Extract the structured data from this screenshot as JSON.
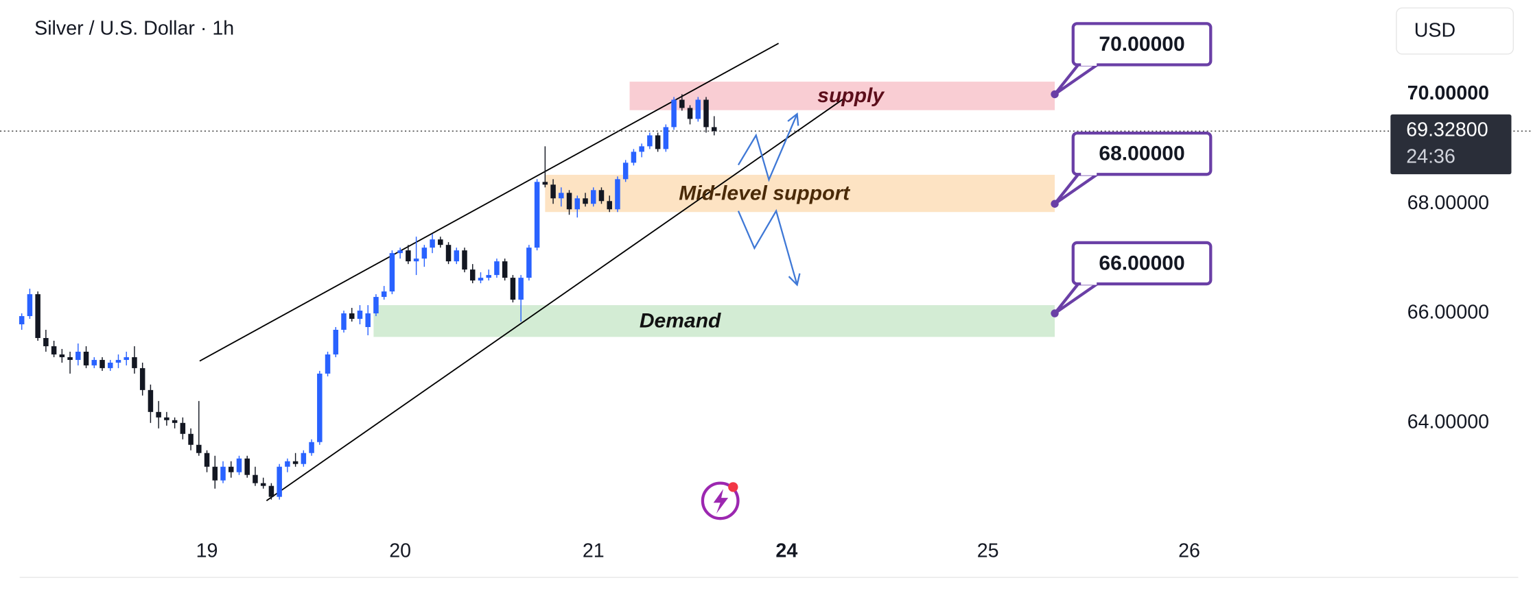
{
  "chart_data": {
    "type": "candlestick",
    "title": "Silver / U.S. Dollar · 1h",
    "currency_button": "USD",
    "up_color": "#2962ff",
    "down_color": "#131722",
    "x": [
      0,
      1,
      2,
      3,
      4,
      5,
      6,
      7,
      8,
      9,
      10,
      11,
      12,
      13,
      14,
      15,
      16,
      17,
      18,
      19,
      20,
      21,
      22,
      23,
      24,
      25,
      26,
      27,
      28,
      29,
      30,
      31,
      32,
      33,
      34,
      35,
      36,
      37,
      38,
      39,
      40,
      41,
      42,
      43,
      44,
      45,
      46,
      47,
      48,
      49,
      50,
      51,
      52,
      53,
      54,
      55,
      56,
      57,
      58,
      59,
      60,
      61,
      62,
      63,
      64,
      65,
      66,
      67,
      68,
      69,
      70,
      71,
      72,
      73,
      74,
      75,
      76,
      77,
      78,
      79,
      80,
      81,
      82,
      83,
      84,
      85,
      86
    ],
    "open": [
      65.8,
      65.95,
      66.35,
      65.55,
      65.4,
      65.25,
      65.2,
      65.15,
      65.3,
      65.05,
      65.15,
      65.0,
      65.1,
      65.15,
      65.2,
      65.0,
      64.6,
      64.2,
      64.1,
      64.05,
      64.0,
      63.8,
      63.6,
      63.45,
      63.2,
      62.95,
      63.2,
      63.1,
      63.35,
      63.05,
      62.9,
      62.85,
      62.65,
      63.2,
      63.3,
      63.25,
      63.45,
      63.65,
      64.9,
      65.25,
      65.7,
      66.0,
      65.9,
      65.75,
      66.0,
      66.3,
      66.4,
      67.1,
      67.15,
      66.95,
      67.0,
      67.2,
      67.35,
      67.25,
      66.95,
      67.15,
      66.8,
      66.6,
      66.65,
      66.7,
      66.95,
      66.65,
      66.25,
      66.65,
      67.2,
      68.4,
      68.35,
      68.1,
      68.2,
      67.9,
      68.1,
      68.0,
      68.25,
      68.05,
      67.9,
      68.45,
      68.75,
      68.95,
      69.05,
      69.25,
      69.0,
      69.4,
      69.9,
      69.75,
      69.55,
      69.9,
      69.4
    ],
    "high": [
      66.0,
      66.45,
      66.4,
      65.7,
      65.5,
      65.35,
      65.3,
      65.45,
      65.4,
      65.2,
      65.2,
      65.15,
      65.25,
      65.3,
      65.4,
      65.1,
      64.7,
      64.4,
      64.2,
      64.1,
      64.1,
      63.9,
      64.4,
      63.5,
      63.4,
      63.3,
      63.3,
      63.4,
      63.4,
      63.2,
      63.0,
      62.9,
      63.25,
      63.35,
      63.45,
      63.5,
      63.7,
      64.95,
      65.3,
      65.75,
      66.05,
      66.1,
      66.15,
      66.15,
      66.35,
      66.5,
      67.15,
      67.2,
      67.25,
      67.4,
      67.25,
      67.45,
      67.4,
      67.3,
      67.2,
      67.2,
      66.9,
      66.75,
      66.8,
      67.0,
      67.0,
      66.7,
      66.7,
      67.25,
      68.45,
      69.05,
      68.45,
      68.3,
      68.25,
      68.15,
      68.2,
      68.3,
      68.3,
      68.15,
      68.5,
      68.8,
      69.0,
      69.1,
      69.3,
      69.3,
      69.45,
      69.95,
      70.0,
      69.8,
      69.95,
      69.95,
      69.6
    ],
    "low": [
      65.7,
      65.9,
      65.5,
      65.3,
      65.2,
      65.1,
      64.9,
      65.05,
      65.0,
      65.0,
      64.95,
      64.95,
      65.0,
      65.05,
      64.9,
      64.5,
      64.0,
      63.9,
      63.95,
      63.9,
      63.7,
      63.5,
      63.4,
      63.1,
      62.8,
      62.9,
      63.0,
      63.05,
      63.0,
      62.85,
      62.8,
      62.6,
      62.6,
      63.1,
      63.2,
      63.2,
      63.4,
      63.6,
      64.85,
      65.2,
      65.65,
      65.85,
      65.8,
      65.6,
      65.95,
      66.25,
      66.35,
      67.0,
      66.9,
      66.7,
      66.85,
      67.1,
      67.2,
      66.9,
      66.9,
      66.75,
      66.55,
      66.55,
      66.6,
      66.65,
      66.6,
      66.2,
      65.85,
      66.6,
      67.15,
      68.3,
      68.0,
      67.95,
      67.8,
      67.75,
      67.95,
      67.95,
      68.0,
      67.85,
      67.85,
      68.4,
      68.7,
      68.85,
      69.0,
      68.95,
      68.95,
      69.35,
      69.7,
      69.45,
      69.5,
      69.3,
      69.25
    ],
    "close": [
      65.95,
      66.35,
      65.55,
      65.4,
      65.25,
      65.2,
      65.15,
      65.3,
      65.05,
      65.15,
      65.0,
      65.1,
      65.15,
      65.2,
      65.0,
      64.6,
      64.2,
      64.1,
      64.05,
      64.0,
      63.8,
      63.6,
      63.45,
      63.2,
      62.95,
      63.2,
      63.1,
      63.35,
      63.05,
      62.9,
      62.85,
      62.65,
      63.2,
      63.3,
      63.25,
      63.45,
      63.65,
      64.9,
      65.25,
      65.7,
      66.0,
      65.9,
      66.05,
      66.0,
      66.3,
      66.4,
      67.1,
      67.15,
      66.95,
      67.0,
      67.2,
      67.35,
      67.25,
      66.95,
      67.15,
      66.8,
      66.6,
      66.65,
      66.7,
      66.95,
      66.65,
      66.25,
      66.65,
      67.2,
      68.4,
      68.35,
      68.1,
      68.2,
      67.9,
      68.1,
      68.0,
      68.25,
      68.05,
      67.9,
      68.45,
      68.75,
      68.95,
      69.05,
      69.25,
      69.0,
      69.4,
      69.9,
      69.75,
      69.55,
      69.9,
      69.4,
      69.328
    ],
    "xlim": [
      -2.7,
      170
    ],
    "ylim": [
      62.04,
      71.72
    ],
    "xticks": [
      {
        "value": 23,
        "label": "19"
      },
      {
        "value": 47,
        "label": "20"
      },
      {
        "value": 71,
        "label": "21"
      },
      {
        "value": 95,
        "label": "24",
        "bold": true
      },
      {
        "value": 120,
        "label": "25"
      },
      {
        "value": 145,
        "label": "26"
      }
    ],
    "yticks": [
      {
        "value": 70,
        "label": "70.00000",
        "bold": true
      },
      {
        "value": 68,
        "label": "68.00000"
      },
      {
        "value": 66,
        "label": "66.00000"
      },
      {
        "value": 64,
        "label": "64.00000"
      }
    ],
    "last_price": {
      "value": 69.328,
      "label": "69.32800",
      "countdown": "24:36"
    },
    "zones": [
      {
        "label": "supply",
        "y0": 69.71,
        "y1": 70.23,
        "x0": 75.5,
        "x1": 128.3,
        "color": "#f9cdd3",
        "text_color": "#5c0d1a"
      },
      {
        "label": "Mid-level support",
        "y0": 67.85,
        "y1": 68.53,
        "x0": 65.0,
        "x1": 128.3,
        "color": "#fde3c3",
        "text_color": "#4a2a08"
      },
      {
        "label": "Demand",
        "y0": 65.57,
        "y1": 66.15,
        "x0": 43.7,
        "x1": 128.3,
        "color": "#d3ecd4",
        "text_color": "#111111"
      }
    ],
    "callouts": [
      {
        "label": "70.00000",
        "value": 70,
        "x": 128.3
      },
      {
        "label": "68.00000",
        "value": 68,
        "x": 128.3
      },
      {
        "label": "66.00000",
        "value": 66,
        "x": 128.3
      }
    ],
    "trendlines": [
      {
        "x": [
          22.1,
          94.0
        ],
        "y": [
          65.13,
          70.93
        ]
      },
      {
        "x": [
          30.4,
          102.2
        ],
        "y": [
          62.58,
          69.93
        ]
      }
    ],
    "projections": [
      {
        "x": [
          89.0,
          91.2,
          92.8,
          96.3
        ],
        "y": [
          68.71,
          69.25,
          68.44,
          69.64
        ],
        "color": "#3f78d6"
      },
      {
        "x": [
          89.0,
          91.0,
          93.7,
          96.3
        ],
        "y": [
          67.87,
          67.19,
          67.87,
          66.52
        ],
        "color": "#3f78d6"
      }
    ]
  }
}
